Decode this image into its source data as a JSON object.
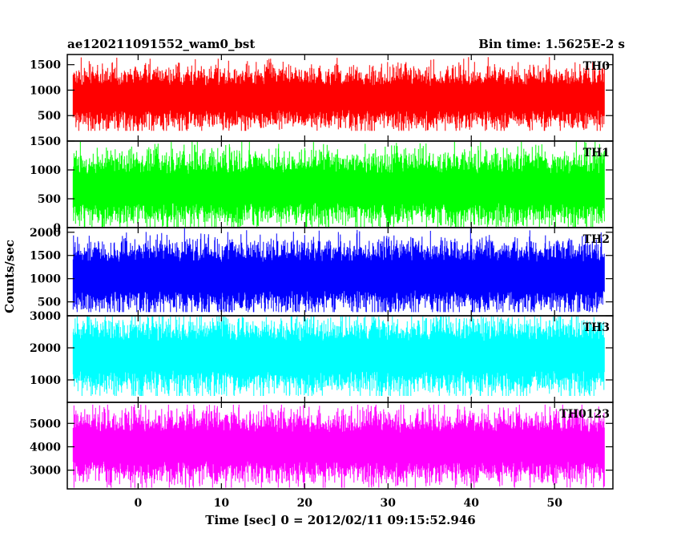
{
  "chart_data": {
    "type": "line",
    "title": "ae120211091552_wam0_bst",
    "bin_time_label": "Bin time: 1.5625E-2 s",
    "xlabel": "Time [sec] 0 = 2012/02/11 09:15:52.946",
    "ylabel": "Counts/sec",
    "x_range": [
      -8.5,
      57
    ],
    "data_x_range": [
      -7.8,
      56
    ],
    "x_ticks": [
      0,
      10,
      20,
      30,
      40,
      50
    ],
    "x_tick_labels": [
      "0",
      "10",
      "20",
      "30",
      "40",
      "50"
    ],
    "grid": false,
    "panels": [
      {
        "name": "TH0",
        "color": "#ff0000",
        "ylim": [
          0,
          1700
        ],
        "y_ticks": [
          500,
          1000,
          1500
        ],
        "y_tick_labels": [
          "500",
          "1000",
          "1500"
        ],
        "mean": 850,
        "typical_range": [
          450,
          1300
        ],
        "extreme_range": [
          200,
          1650
        ]
      },
      {
        "name": "TH1",
        "color": "#00ff00",
        "ylim": [
          0,
          1500
        ],
        "y_ticks": [
          0,
          500,
          1000,
          1500
        ],
        "y_tick_labels": [
          "0",
          "500",
          "1000",
          "1500"
        ],
        "mean": 680,
        "typical_range": [
          250,
          1150
        ],
        "extreme_range": [
          0,
          1500
        ]
      },
      {
        "name": "TH2",
        "color": "#0000ff",
        "ylim": [
          200,
          2100
        ],
        "y_ticks": [
          500,
          1000,
          1500,
          2000
        ],
        "y_tick_labels": [
          "500",
          "1000",
          "1500",
          "2000"
        ],
        "mean": 1050,
        "typical_range": [
          550,
          1650
        ],
        "extreme_range": [
          280,
          2150
        ]
      },
      {
        "name": "TH3",
        "color": "#00ffff",
        "ylim": [
          300,
          3000
        ],
        "y_ticks": [
          1000,
          2000,
          3000
        ],
        "y_tick_labels": [
          "1000",
          "2000",
          "3000"
        ],
        "mean": 1750,
        "typical_range": [
          950,
          2600
        ],
        "extreme_range": [
          500,
          3000
        ]
      },
      {
        "name": "TH0123",
        "color": "#ff00ff",
        "ylim": [
          2200,
          5900
        ],
        "y_ticks": [
          3000,
          4000,
          5000
        ],
        "y_tick_labels": [
          "3000",
          "4000",
          "5000"
        ],
        "mean": 4000,
        "typical_range": [
          3000,
          5200
        ],
        "extreme_range": [
          2250,
          5800
        ]
      }
    ]
  }
}
